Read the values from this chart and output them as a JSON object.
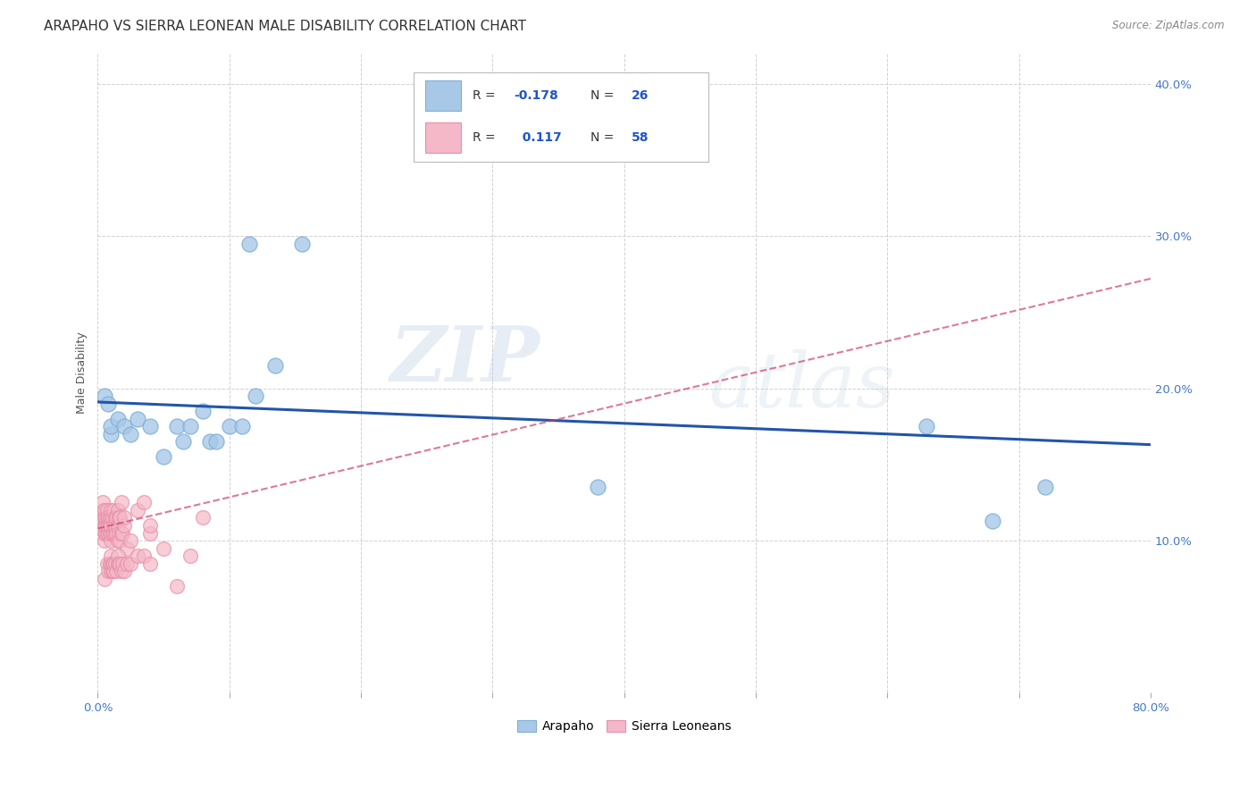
{
  "title": "ARAPAHO VS SIERRA LEONEAN MALE DISABILITY CORRELATION CHART",
  "source": "Source: ZipAtlas.com",
  "ylabel": "Male Disability",
  "xlim": [
    0,
    0.8
  ],
  "ylim": [
    0,
    0.42
  ],
  "xticks": [
    0.0,
    0.1,
    0.2,
    0.3,
    0.4,
    0.5,
    0.6,
    0.7,
    0.8
  ],
  "xticklabels": [
    "0.0%",
    "",
    "",
    "",
    "",
    "",
    "",
    "",
    "80.0%"
  ],
  "yticks": [
    0.0,
    0.1,
    0.2,
    0.3,
    0.4
  ],
  "yticklabels": [
    "",
    "10.0%",
    "20.0%",
    "30.0%",
    "40.0%"
  ],
  "background_color": "#ffffff",
  "grid_color": "#cccccc",
  "watermark_zip": "ZIP",
  "watermark_atlas": "atlas",
  "arapaho_x": [
    0.005,
    0.008,
    0.01,
    0.01,
    0.015,
    0.02,
    0.025,
    0.05,
    0.06,
    0.065,
    0.07,
    0.08,
    0.085,
    0.09,
    0.1,
    0.11,
    0.115,
    0.12,
    0.135,
    0.155,
    0.38,
    0.63,
    0.68,
    0.72,
    0.03,
    0.04
  ],
  "arapaho_y": [
    0.195,
    0.19,
    0.17,
    0.175,
    0.18,
    0.175,
    0.17,
    0.155,
    0.175,
    0.165,
    0.175,
    0.185,
    0.165,
    0.165,
    0.175,
    0.175,
    0.295,
    0.195,
    0.215,
    0.295,
    0.135,
    0.175,
    0.113,
    0.135,
    0.18,
    0.175
  ],
  "sierra_x": [
    0.003,
    0.004,
    0.004,
    0.005,
    0.005,
    0.005,
    0.005,
    0.005,
    0.006,
    0.006,
    0.006,
    0.007,
    0.007,
    0.007,
    0.007,
    0.008,
    0.008,
    0.008,
    0.009,
    0.009,
    0.009,
    0.01,
    0.01,
    0.01,
    0.01,
    0.01,
    0.011,
    0.011,
    0.012,
    0.012,
    0.012,
    0.013,
    0.013,
    0.013,
    0.014,
    0.014,
    0.015,
    0.015,
    0.015,
    0.016,
    0.016,
    0.017,
    0.017,
    0.018,
    0.018,
    0.019,
    0.02,
    0.02,
    0.022,
    0.025,
    0.03,
    0.035,
    0.04,
    0.04,
    0.05,
    0.06,
    0.07,
    0.08
  ],
  "sierra_y": [
    0.115,
    0.12,
    0.125,
    0.1,
    0.105,
    0.11,
    0.115,
    0.12,
    0.105,
    0.11,
    0.115,
    0.105,
    0.11,
    0.115,
    0.12,
    0.105,
    0.11,
    0.115,
    0.105,
    0.11,
    0.115,
    0.1,
    0.105,
    0.11,
    0.115,
    0.12,
    0.105,
    0.115,
    0.105,
    0.11,
    0.12,
    0.105,
    0.11,
    0.115,
    0.105,
    0.115,
    0.1,
    0.11,
    0.12,
    0.105,
    0.115,
    0.1,
    0.115,
    0.105,
    0.125,
    0.105,
    0.11,
    0.115,
    0.095,
    0.1,
    0.12,
    0.125,
    0.105,
    0.11,
    0.095,
    0.07,
    0.09,
    0.115
  ],
  "sierra_low_x": [
    0.005,
    0.007,
    0.008,
    0.009,
    0.01,
    0.01,
    0.01,
    0.011,
    0.011,
    0.012,
    0.012,
    0.013,
    0.014,
    0.015,
    0.015,
    0.016,
    0.017,
    0.018,
    0.019,
    0.02,
    0.022,
    0.025,
    0.03,
    0.035,
    0.04
  ],
  "sierra_low_y": [
    0.075,
    0.085,
    0.08,
    0.085,
    0.08,
    0.085,
    0.09,
    0.08,
    0.085,
    0.08,
    0.085,
    0.085,
    0.08,
    0.085,
    0.09,
    0.085,
    0.085,
    0.08,
    0.085,
    0.08,
    0.085,
    0.085,
    0.09,
    0.09,
    0.085
  ],
  "arapaho_color": "#a8c8e8",
  "sierra_color": "#f4b8c8",
  "arapaho_edge_color": "#7fafd6",
  "sierra_edge_color": "#e890a8",
  "arapaho_line_color": "#2255aa",
  "sierra_line_color": "#cc4466",
  "arapaho_R": "-0.178",
  "arapaho_N": "26",
  "sierra_R": "0.117",
  "sierra_N": "58",
  "arapaho_line_x0": 0.0,
  "arapaho_line_x1": 0.8,
  "arapaho_line_y0": 0.191,
  "arapaho_line_y1": 0.163,
  "sierra_line_x0": 0.0,
  "sierra_line_x1": 0.8,
  "sierra_line_y0": 0.108,
  "sierra_line_y1": 0.272,
  "title_fontsize": 11,
  "axis_label_fontsize": 9,
  "tick_fontsize": 9.5
}
